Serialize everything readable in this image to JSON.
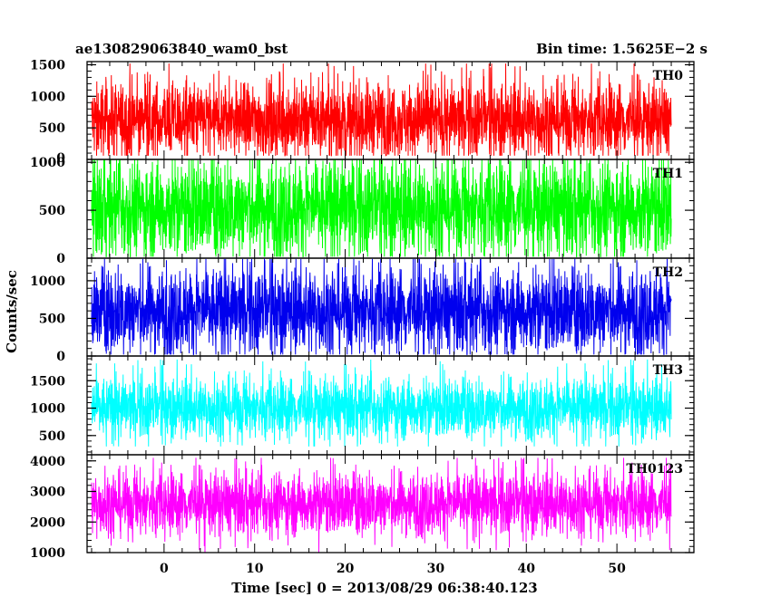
{
  "header": {
    "left_title": "ae130829063840_wam0_bst",
    "right_title": "Bin time: 1.5625E−2 s"
  },
  "chart_data": {
    "type": "line",
    "title": "ae130829063840_wam0_bst",
    "subtitle": "Bin time: 1.5625E−2 s",
    "xlabel": "Time [sec] 0 = 2013/08/29 06:38:40.123",
    "ylabel": "Counts/sec",
    "xlim": [
      -8.5,
      58.5
    ],
    "data_x_range": [
      -8,
      56
    ],
    "x_ticks": [
      0,
      10,
      20,
      30,
      40,
      50
    ],
    "grid": false,
    "legend": "none",
    "panels": [
      {
        "name": "TH0",
        "color": "#ff0000",
        "ylim": [
          0,
          1550
        ],
        "y_ticks": [
          500,
          1000,
          1500
        ],
        "y_tick_labels": [
          "500",
          "1000",
          "1500"
        ],
        "y_zero_label": "0",
        "mean": 620,
        "spread": 300,
        "min": 60,
        "max": 1520
      },
      {
        "name": "TH1",
        "color": "#00ff00",
        "ylim": [
          0,
          1030
        ],
        "y_ticks": [
          0,
          500,
          1000
        ],
        "y_tick_labels": [
          "0",
          "500",
          "1000"
        ],
        "mean": 520,
        "spread": 260,
        "min": 15,
        "max": 1025
      },
      {
        "name": "TH2",
        "color": "#0000ee",
        "ylim": [
          0,
          1300
        ],
        "y_ticks": [
          0,
          500,
          1000
        ],
        "y_tick_labels": [
          "0",
          "500",
          "1000"
        ],
        "mean": 600,
        "spread": 290,
        "min": 20,
        "max": 1290
      },
      {
        "name": "TH3",
        "color": "#00ffff",
        "ylim": [
          150,
          1950
        ],
        "y_ticks": [
          500,
          1000,
          1500
        ],
        "y_tick_labels": [
          "500",
          "1000",
          "1500"
        ],
        "mean": 1000,
        "spread": 280,
        "min": 300,
        "max": 1900
      },
      {
        "name": "TH0123",
        "color": "#ff00ff",
        "ylim": [
          1000,
          4200
        ],
        "y_ticks": [
          1000,
          2000,
          3000,
          4000
        ],
        "y_tick_labels": [
          "1000",
          "2000",
          "3000",
          "4000"
        ],
        "mean": 2600,
        "spread": 520,
        "min": 1000,
        "max": 4100
      }
    ]
  }
}
